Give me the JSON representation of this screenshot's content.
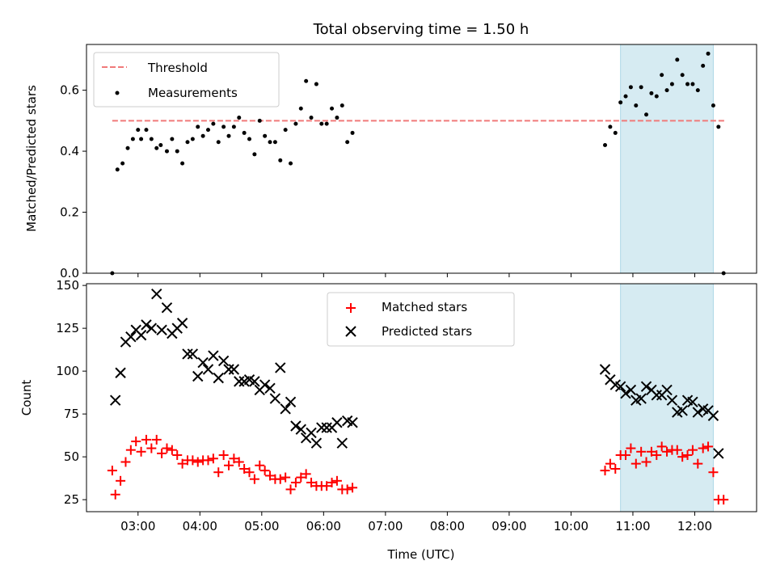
{
  "chart_data": [
    {
      "type": "scatter",
      "title": "Total observing time = 1.50 h",
      "xlabel": "",
      "ylabel": "Matched/Predicted stars",
      "xlim": [
        "02:10",
        "13:00"
      ],
      "ylim": [
        0,
        0.75
      ],
      "yticks": [
        "0.0",
        "0.2",
        "0.4",
        "0.6"
      ],
      "ytick_values": [
        0,
        0.2,
        0.4,
        0.6
      ],
      "grid": false,
      "legend_position": "upper-left",
      "highlight_span": [
        "10:48",
        "12:18"
      ],
      "threshold": {
        "name": "Threshold",
        "value": 0.5,
        "x_range": [
          "02:35",
          "12:30"
        ],
        "color": "#f07a7a"
      },
      "series": [
        {
          "name": "Measurements",
          "color": "#000000",
          "points": [
            [
              "02:35",
              0.0
            ],
            [
              "02:40",
              0.34
            ],
            [
              "02:45",
              0.36
            ],
            [
              "02:50",
              0.41
            ],
            [
              "02:55",
              0.44
            ],
            [
              "03:00",
              0.47
            ],
            [
              "03:03",
              0.44
            ],
            [
              "03:08",
              0.47
            ],
            [
              "03:13",
              0.44
            ],
            [
              "03:18",
              0.41
            ],
            [
              "03:22",
              0.42
            ],
            [
              "03:28",
              0.4
            ],
            [
              "03:33",
              0.44
            ],
            [
              "03:38",
              0.4
            ],
            [
              "03:43",
              0.36
            ],
            [
              "03:48",
              0.43
            ],
            [
              "03:53",
              0.44
            ],
            [
              "03:58",
              0.48
            ],
            [
              "04:03",
              0.45
            ],
            [
              "04:08",
              0.47
            ],
            [
              "04:13",
              0.49
            ],
            [
              "04:18",
              0.43
            ],
            [
              "04:23",
              0.48
            ],
            [
              "04:28",
              0.45
            ],
            [
              "04:33",
              0.48
            ],
            [
              "04:38",
              0.51
            ],
            [
              "04:43",
              0.46
            ],
            [
              "04:48",
              0.44
            ],
            [
              "04:53",
              0.39
            ],
            [
              "04:58",
              0.5
            ],
            [
              "05:03",
              0.45
            ],
            [
              "05:08",
              0.43
            ],
            [
              "05:13",
              0.43
            ],
            [
              "05:18",
              0.37
            ],
            [
              "05:23",
              0.47
            ],
            [
              "05:28",
              0.36
            ],
            [
              "05:33",
              0.49
            ],
            [
              "05:38",
              0.54
            ],
            [
              "05:43",
              0.63
            ],
            [
              "05:48",
              0.51
            ],
            [
              "05:53",
              0.62
            ],
            [
              "05:58",
              0.49
            ],
            [
              "06:03",
              0.49
            ],
            [
              "06:08",
              0.54
            ],
            [
              "06:13",
              0.51
            ],
            [
              "06:18",
              0.55
            ],
            [
              "06:23",
              0.43
            ],
            [
              "06:28",
              0.46
            ],
            [
              "10:33",
              0.42
            ],
            [
              "10:38",
              0.48
            ],
            [
              "10:43",
              0.46
            ],
            [
              "10:48",
              0.56
            ],
            [
              "10:53",
              0.58
            ],
            [
              "10:58",
              0.61
            ],
            [
              "11:03",
              0.55
            ],
            [
              "11:08",
              0.61
            ],
            [
              "11:13",
              0.52
            ],
            [
              "11:18",
              0.59
            ],
            [
              "11:23",
              0.58
            ],
            [
              "11:28",
              0.65
            ],
            [
              "11:33",
              0.6
            ],
            [
              "11:38",
              0.62
            ],
            [
              "11:43",
              0.7
            ],
            [
              "11:48",
              0.65
            ],
            [
              "11:53",
              0.62
            ],
            [
              "11:58",
              0.62
            ],
            [
              "12:03",
              0.6
            ],
            [
              "12:08",
              0.68
            ],
            [
              "12:13",
              0.72
            ],
            [
              "12:18",
              0.55
            ],
            [
              "12:23",
              0.48
            ],
            [
              "12:28",
              0.0
            ]
          ]
        }
      ]
    },
    {
      "type": "scatter",
      "title": "",
      "xlabel": "Time (UTC)",
      "ylabel": "Count",
      "xlim": [
        "02:10",
        "13:00"
      ],
      "ylim": [
        18,
        151
      ],
      "yticks": [
        "25",
        "50",
        "75",
        "100",
        "125",
        "150"
      ],
      "ytick_values": [
        25,
        50,
        75,
        100,
        125,
        150
      ],
      "xticks": [
        "03:00",
        "04:00",
        "05:00",
        "06:00",
        "07:00",
        "08:00",
        "09:00",
        "10:00",
        "11:00",
        "12:00"
      ],
      "grid": false,
      "legend_position": "upper-center",
      "highlight_span": [
        "10:48",
        "12:18"
      ],
      "series": [
        {
          "name": "Matched stars",
          "marker": "plus",
          "color": "#ff0000",
          "points": [
            [
              "02:35",
              42
            ],
            [
              "02:38",
              28
            ],
            [
              "02:43",
              36
            ],
            [
              "02:48",
              47
            ],
            [
              "02:53",
              54
            ],
            [
              "02:58",
              59
            ],
            [
              "03:03",
              53
            ],
            [
              "03:08",
              60
            ],
            [
              "03:13",
              55
            ],
            [
              "03:18",
              60
            ],
            [
              "03:23",
              52
            ],
            [
              "03:28",
              55
            ],
            [
              "03:33",
              54
            ],
            [
              "03:38",
              51
            ],
            [
              "03:43",
              46
            ],
            [
              "03:48",
              48
            ],
            [
              "03:53",
              48
            ],
            [
              "03:58",
              47
            ],
            [
              "04:03",
              48
            ],
            [
              "04:08",
              48
            ],
            [
              "04:13",
              49
            ],
            [
              "04:18",
              41
            ],
            [
              "04:23",
              51
            ],
            [
              "04:28",
              45
            ],
            [
              "04:33",
              49
            ],
            [
              "04:38",
              47
            ],
            [
              "04:43",
              43
            ],
            [
              "04:48",
              41
            ],
            [
              "04:53",
              37
            ],
            [
              "04:58",
              45
            ],
            [
              "05:03",
              42
            ],
            [
              "05:08",
              39
            ],
            [
              "05:13",
              37
            ],
            [
              "05:18",
              37
            ],
            [
              "05:23",
              38
            ],
            [
              "05:28",
              31
            ],
            [
              "05:33",
              35
            ],
            [
              "05:38",
              38
            ],
            [
              "05:43",
              40
            ],
            [
              "05:48",
              35
            ],
            [
              "05:53",
              33
            ],
            [
              "05:58",
              33
            ],
            [
              "06:03",
              33
            ],
            [
              "06:08",
              35
            ],
            [
              "06:13",
              36
            ],
            [
              "06:18",
              31
            ],
            [
              "06:23",
              31
            ],
            [
              "06:28",
              32
            ],
            [
              "10:33",
              42
            ],
            [
              "10:38",
              46
            ],
            [
              "10:43",
              43
            ],
            [
              "10:48",
              51
            ],
            [
              "10:53",
              51
            ],
            [
              "10:58",
              55
            ],
            [
              "11:03",
              46
            ],
            [
              "11:08",
              53
            ],
            [
              "11:13",
              47
            ],
            [
              "11:18",
              53
            ],
            [
              "11:23",
              51
            ],
            [
              "11:28",
              56
            ],
            [
              "11:33",
              53
            ],
            [
              "11:38",
              54
            ],
            [
              "11:43",
              54
            ],
            [
              "11:48",
              50
            ],
            [
              "11:53",
              51
            ],
            [
              "11:58",
              54
            ],
            [
              "12:03",
              46
            ],
            [
              "12:08",
              55
            ],
            [
              "12:13",
              56
            ],
            [
              "12:18",
              41
            ],
            [
              "12:23",
              25
            ],
            [
              "12:28",
              25
            ]
          ]
        },
        {
          "name": "Predicted stars",
          "marker": "x",
          "color": "#000000",
          "points": [
            [
              "02:38",
              83
            ],
            [
              "02:43",
              99
            ],
            [
              "02:48",
              117
            ],
            [
              "02:53",
              120
            ],
            [
              "02:58",
              124
            ],
            [
              "03:03",
              121
            ],
            [
              "03:08",
              127
            ],
            [
              "03:13",
              125
            ],
            [
              "03:18",
              145
            ],
            [
              "03:23",
              124
            ],
            [
              "03:28",
              137
            ],
            [
              "03:33",
              122
            ],
            [
              "03:38",
              125
            ],
            [
              "03:43",
              128
            ],
            [
              "03:48",
              110
            ],
            [
              "03:53",
              110
            ],
            [
              "03:58",
              97
            ],
            [
              "04:03",
              105
            ],
            [
              "04:08",
              101
            ],
            [
              "04:13",
              109
            ],
            [
              "04:18",
              96
            ],
            [
              "04:23",
              106
            ],
            [
              "04:28",
              101
            ],
            [
              "04:33",
              101
            ],
            [
              "04:38",
              94
            ],
            [
              "04:43",
              94
            ],
            [
              "04:48",
              95
            ],
            [
              "04:53",
              94
            ],
            [
              "04:58",
              89
            ],
            [
              "05:03",
              92
            ],
            [
              "05:08",
              90
            ],
            [
              "05:13",
              84
            ],
            [
              "05:18",
              102
            ],
            [
              "05:23",
              78
            ],
            [
              "05:28",
              82
            ],
            [
              "05:33",
              68
            ],
            [
              "05:38",
              66
            ],
            [
              "05:43",
              61
            ],
            [
              "05:48",
              64
            ],
            [
              "05:53",
              58
            ],
            [
              "05:58",
              67
            ],
            [
              "06:03",
              67
            ],
            [
              "06:08",
              67
            ],
            [
              "06:13",
              70
            ],
            [
              "06:18",
              58
            ],
            [
              "06:23",
              71
            ],
            [
              "06:28",
              70
            ],
            [
              "10:33",
              101
            ],
            [
              "10:38",
              95
            ],
            [
              "10:43",
              92
            ],
            [
              "10:48",
              91
            ],
            [
              "10:53",
              87
            ],
            [
              "10:58",
              89
            ],
            [
              "11:03",
              83
            ],
            [
              "11:08",
              84
            ],
            [
              "11:13",
              91
            ],
            [
              "11:18",
              89
            ],
            [
              "11:23",
              86
            ],
            [
              "11:28",
              86
            ],
            [
              "11:33",
              89
            ],
            [
              "11:38",
              83
            ],
            [
              "11:43",
              76
            ],
            [
              "11:48",
              77
            ],
            [
              "11:53",
              83
            ],
            [
              "11:58",
              82
            ],
            [
              "12:03",
              76
            ],
            [
              "12:08",
              78
            ],
            [
              "12:13",
              77
            ],
            [
              "12:18",
              74
            ],
            [
              "12:23",
              52
            ]
          ]
        }
      ]
    }
  ]
}
